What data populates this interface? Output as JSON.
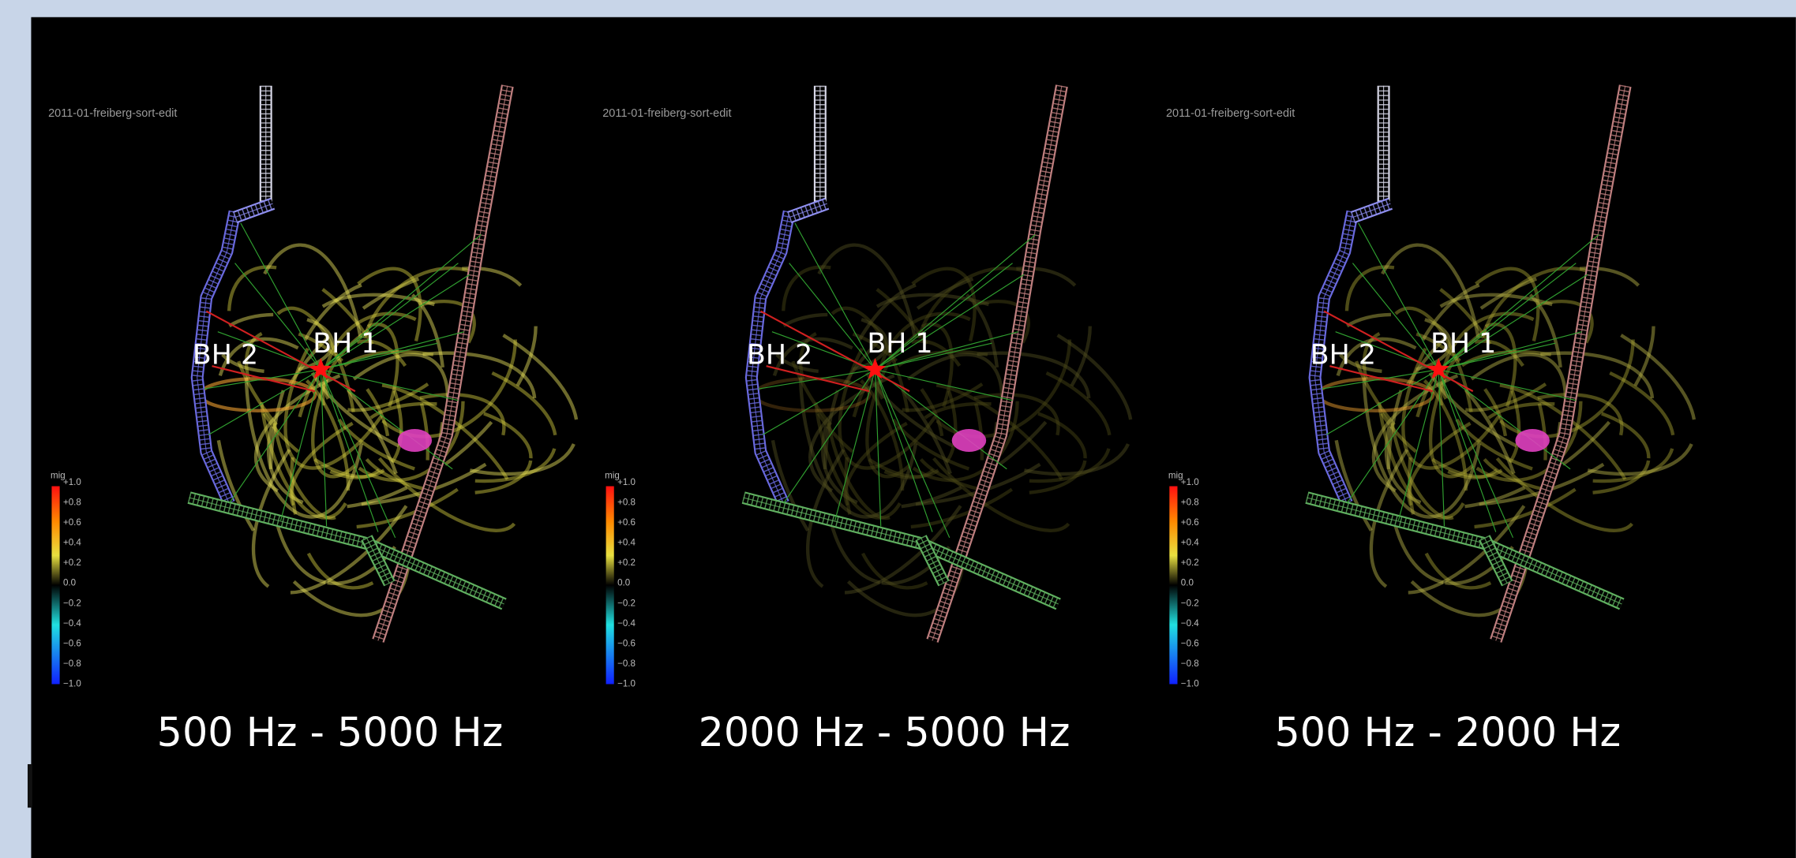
{
  "panels": [
    {
      "header": "2011-01-freiberg-sort-edit",
      "bh1": "BH 1",
      "bh2": "BH 2",
      "colorbar_title": "mig",
      "colorbar_ticks": [
        "+1.0",
        "+0.8",
        "+0.6",
        "+0.4",
        "+0.2",
        "0.0",
        "−0.2",
        "−0.4",
        "−0.6",
        "−0.8",
        "−1.0"
      ],
      "caption": "500 Hz - 5000 Hz"
    },
    {
      "header": "2011-01-freiberg-sort-edit",
      "bh1": "BH 1",
      "bh2": "BH 2",
      "colorbar_title": "mig",
      "colorbar_ticks": [
        "+1.0",
        "+0.8",
        "+0.6",
        "+0.4",
        "+0.2",
        "0.0",
        "−0.2",
        "−0.4",
        "−0.6",
        "−0.8",
        "−1.0"
      ],
      "caption": "2000 Hz - 5000 Hz"
    },
    {
      "header": "2011-01-freiberg-sort-edit",
      "bh1": "BH 1",
      "bh2": "BH 2",
      "colorbar_title": "mig",
      "colorbar_ticks": [
        "+1.0",
        "+0.8",
        "+0.6",
        "+0.4",
        "+0.2",
        "0.0",
        "−0.2",
        "−0.4",
        "−0.6",
        "−0.8",
        "−1.0"
      ],
      "caption": "500 Hz - 2000 Hz"
    }
  ]
}
